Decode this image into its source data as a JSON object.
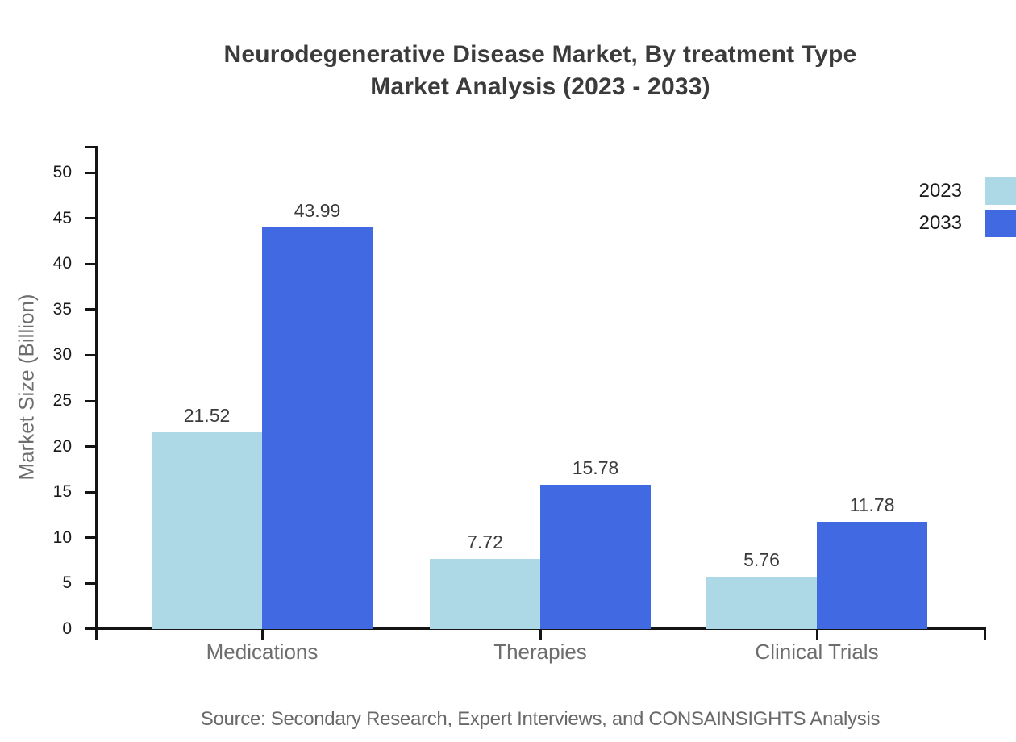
{
  "title": {
    "line1": "Neurodegenerative Disease Market, By treatment Type",
    "line2": "Market Analysis (2023 - 2033)"
  },
  "legend": {
    "items": [
      {
        "label": "2023",
        "color": "#ADD8E6"
      },
      {
        "label": "2033",
        "color": "#4169E1"
      }
    ]
  },
  "source": "Source: Secondary Research, Expert Interviews, and CONSAINSIGHTS Analysis",
  "chart_data": {
    "type": "bar",
    "title": "Neurodegenerative Disease Market, By treatment Type Market Analysis (2023 - 2033)",
    "categories": [
      "Medications",
      "Therapies",
      "Clinical Trials"
    ],
    "series": [
      {
        "name": "2023",
        "color": "#ADD8E6",
        "values": [
          21.52,
          7.72,
          5.76
        ]
      },
      {
        "name": "2033",
        "color": "#4169E1",
        "values": [
          43.99,
          15.78,
          11.78
        ]
      }
    ],
    "xlabel": "",
    "ylabel": "Market Size (Billion)",
    "ylim": [
      0,
      50
    ],
    "ytick_step": 5,
    "ytick_labels": [
      "0",
      "5",
      "10",
      "15",
      "20",
      "25",
      "30",
      "35",
      "40",
      "45",
      "50"
    ],
    "value_label_decimals": 2,
    "grid": false,
    "legend_position": "top-right",
    "axis_color": "#141414",
    "tick_label_color": "#1a1a1a",
    "category_label_color": "#6e6e6e"
  }
}
